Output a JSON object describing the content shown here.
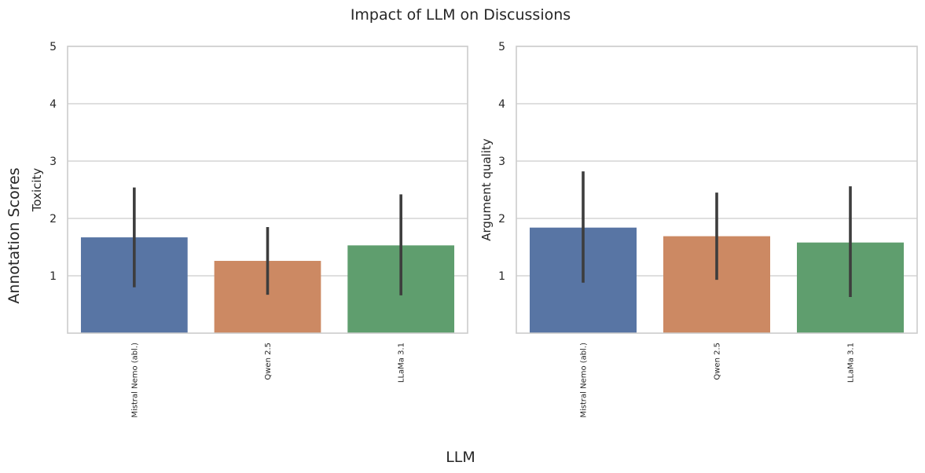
{
  "figure": {
    "suptitle": "Impact of LLM on Discussions",
    "supxlabel": "LLM",
    "supylabel": "Annotation Scores"
  },
  "chart_data": [
    {
      "type": "bar",
      "title": "",
      "xlabel": "",
      "ylabel": "Toxicity",
      "categories": [
        "Mistral Nemo (abl.)",
        "Qwen 2.5",
        "LLaMa 3.1"
      ],
      "values": [
        1.67,
        1.26,
        1.53
      ],
      "error_low": [
        0.8,
        0.67,
        0.66
      ],
      "error_high": [
        2.54,
        1.85,
        2.42
      ],
      "colors": [
        "#5875a4",
        "#cc8963",
        "#5f9e6e"
      ],
      "ylim": [
        0,
        5
      ],
      "yticks": [
        1,
        2,
        3,
        4,
        5
      ],
      "grid": true
    },
    {
      "type": "bar",
      "title": "",
      "xlabel": "",
      "ylabel": "Argument quality",
      "categories": [
        "Mistral Nemo (abl.)",
        "Qwen 2.5",
        "LLaMa 3.1"
      ],
      "values": [
        1.84,
        1.69,
        1.58
      ],
      "error_low": [
        0.88,
        0.93,
        0.63
      ],
      "error_high": [
        2.82,
        2.45,
        2.56
      ],
      "colors": [
        "#5875a4",
        "#cc8963",
        "#5f9e6e"
      ],
      "ylim": [
        0,
        5
      ],
      "yticks": [
        1,
        2,
        3,
        4,
        5
      ],
      "grid": true
    }
  ]
}
